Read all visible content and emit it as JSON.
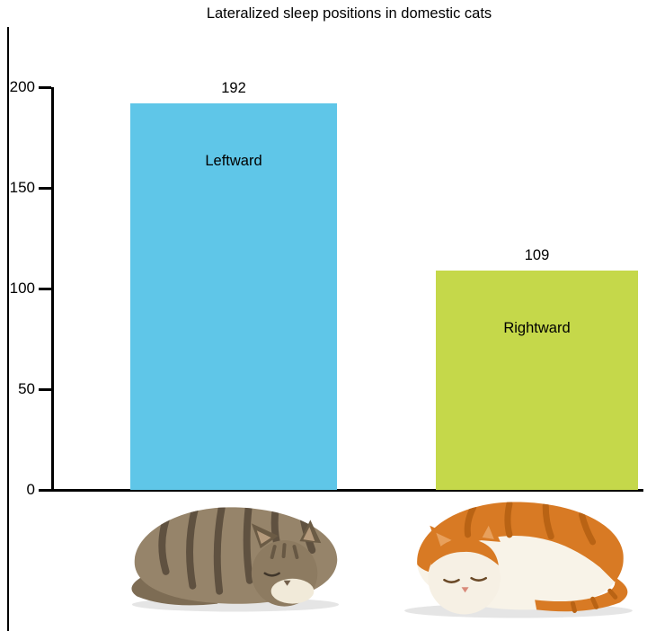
{
  "chart_data": {
    "type": "bar",
    "title": "Lateralized sleep positions in domestic cats",
    "categories": [
      "Leftward",
      "Rightward"
    ],
    "values": [
      192,
      109
    ],
    "bar_colors": [
      "#5fc6e8",
      "#c5d84a"
    ],
    "xlabel": "",
    "ylabel": "",
    "ylim": [
      0,
      200
    ],
    "yticks": [
      0,
      50,
      100,
      150,
      200
    ],
    "grid": false,
    "legend": "none"
  }
}
